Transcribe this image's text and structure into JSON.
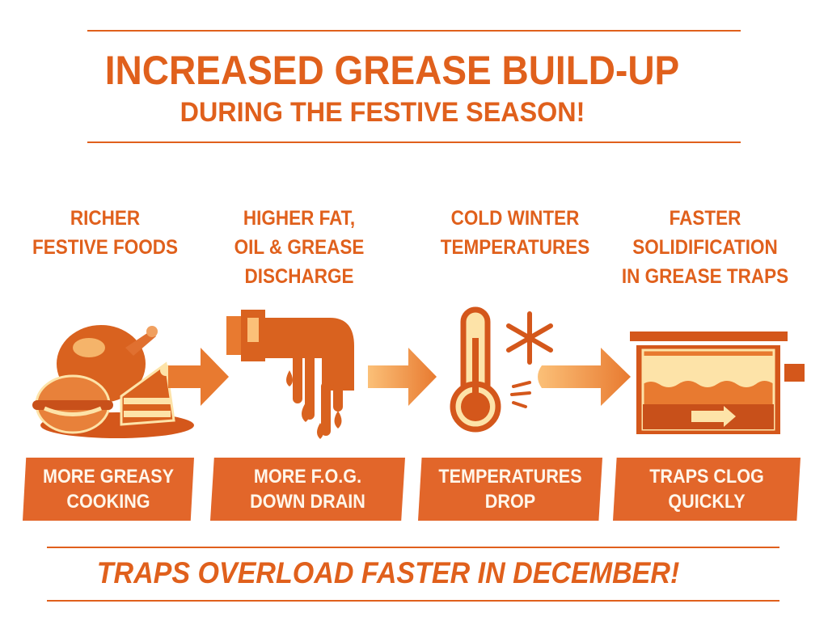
{
  "title": {
    "line1": "INCREASED GREASE BUILD-UP",
    "line2": "DURING THE FESTIVE SEASON!"
  },
  "steps": [
    {
      "heading": [
        "RICHER",
        "FESTIVE FOODS"
      ],
      "icon": "festive-food-icon",
      "band": [
        "MORE GREASY",
        "COOKING"
      ]
    },
    {
      "heading": [
        "HIGHER FAT,",
        "OIL & GREASE",
        "DISCHARGE"
      ],
      "icon": "dripping-pipe-icon",
      "band": [
        "MORE F.O.G.",
        "DOWN DRAIN"
      ]
    },
    {
      "heading": [
        "COLD WINTER",
        "TEMPERATURES"
      ],
      "icon": "thermometer-snowflake-icon",
      "band": [
        "TEMPERATURES",
        "DROP"
      ]
    },
    {
      "heading": [
        "FASTER",
        "SOLIDIFICATION",
        "IN GREASE TRAPS"
      ],
      "icon": "grease-trap-icon",
      "band": [
        "TRAPS CLOG",
        "QUICKLY"
      ]
    }
  ],
  "footer": "TRAPS OVERLOAD FASTER IN DECEMBER!",
  "colors": {
    "accent": "#e0601c",
    "band": "#e2662a",
    "dark": "#c8501a",
    "cream": "#fde3a8"
  }
}
